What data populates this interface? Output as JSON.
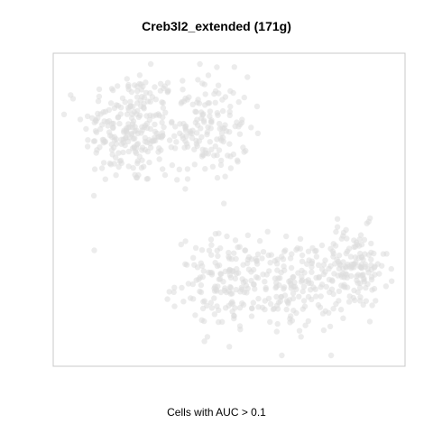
{
  "chart_data": {
    "type": "scatter",
    "title": "Creb3l2_extended (171g)",
    "xlabel": "Cells with AUC > 0.1",
    "ylabel": "",
    "xlim": [
      0,
      100
    ],
    "ylim": [
      0,
      100
    ],
    "grid": false,
    "legend": "none",
    "point_color": "#dcdcdc",
    "point_opacity": 0.55,
    "frame_color": "#c8c8c8",
    "clusters": [
      {
        "region": "upper-left",
        "cx": 20,
        "cy": 78,
        "sx": 7,
        "sy": 10,
        "n": 230
      },
      {
        "region": "upper-middle",
        "cx": 42,
        "cy": 78,
        "sx": 7,
        "sy": 9,
        "n": 170
      },
      {
        "region": "lower-middle",
        "cx": 50,
        "cy": 25,
        "sx": 8,
        "sy": 8,
        "n": 160
      },
      {
        "region": "lower-center-right",
        "cx": 70,
        "cy": 24,
        "sx": 8,
        "sy": 8,
        "n": 160
      },
      {
        "region": "lower-right",
        "cx": 88,
        "cy": 30,
        "sx": 5,
        "sy": 7,
        "n": 130
      }
    ]
  }
}
